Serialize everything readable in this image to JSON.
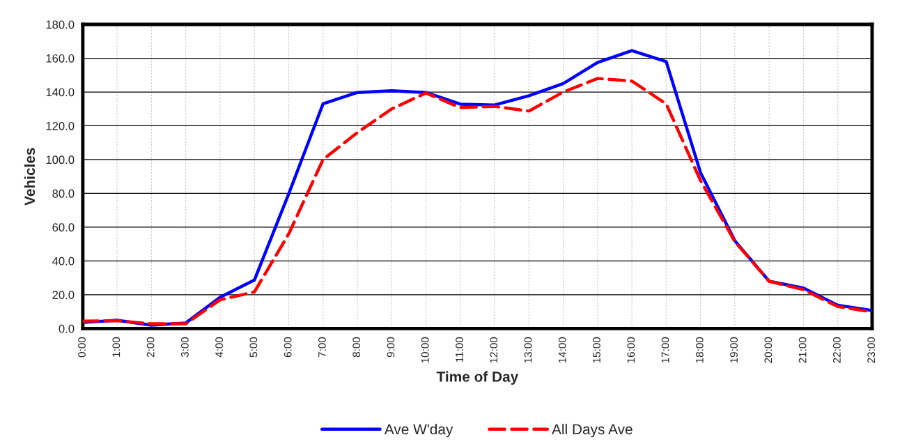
{
  "chart_data": {
    "type": "line",
    "xlabel": "Time of Day",
    "ylabel": "Vehicles",
    "categories": [
      "0:00",
      "1:00",
      "2:00",
      "3:00",
      "4:00",
      "5:00",
      "6:00",
      "7:00",
      "8:00",
      "9:00",
      "10:00",
      "11:00",
      "12:00",
      "13:00",
      "14:00",
      "15:00",
      "16:00",
      "17:00",
      "18:00",
      "19:00",
      "20:00",
      "21:00",
      "22:00",
      "23:00"
    ],
    "series": [
      {
        "name": "Ave W'day",
        "color": "#0000ff",
        "line_style": "solid",
        "values": [
          3.6,
          4.9,
          2,
          3.3,
          18.5,
          28.7,
          79.7,
          133,
          139.7,
          140.7,
          139.7,
          132.8,
          132.3,
          137.8,
          145,
          157.5,
          164.5,
          158,
          92.3,
          52,
          28,
          24,
          13.8,
          10.7
        ]
      },
      {
        "name": "All Days Ave",
        "color": "#ff0000",
        "line_style": "dashed",
        "values": [
          4.4,
          4.7,
          2.8,
          2.8,
          17,
          21.7,
          56,
          100,
          116,
          130,
          139.4,
          130.8,
          131.5,
          128.7,
          140,
          148,
          146.5,
          133,
          87.6,
          51.5,
          28,
          23,
          13,
          9.9
        ]
      }
    ],
    "ylim": [
      0,
      180
    ],
    "yticks": [
      {
        "value": 0,
        "label": "0.0"
      },
      {
        "value": 20,
        "label": "20.0"
      },
      {
        "value": 40,
        "label": "40.0"
      },
      {
        "value": 60,
        "label": "60.0"
      },
      {
        "value": 80,
        "label": "80.0"
      },
      {
        "value": 100,
        "label": "100.0"
      },
      {
        "value": 120,
        "label": "120.0"
      },
      {
        "value": 140,
        "label": "140.0"
      },
      {
        "value": 160,
        "label": "160.0"
      },
      {
        "value": 180,
        "label": "180.0"
      }
    ],
    "grid": true,
    "legend": "bottom",
    "marker": "none"
  }
}
